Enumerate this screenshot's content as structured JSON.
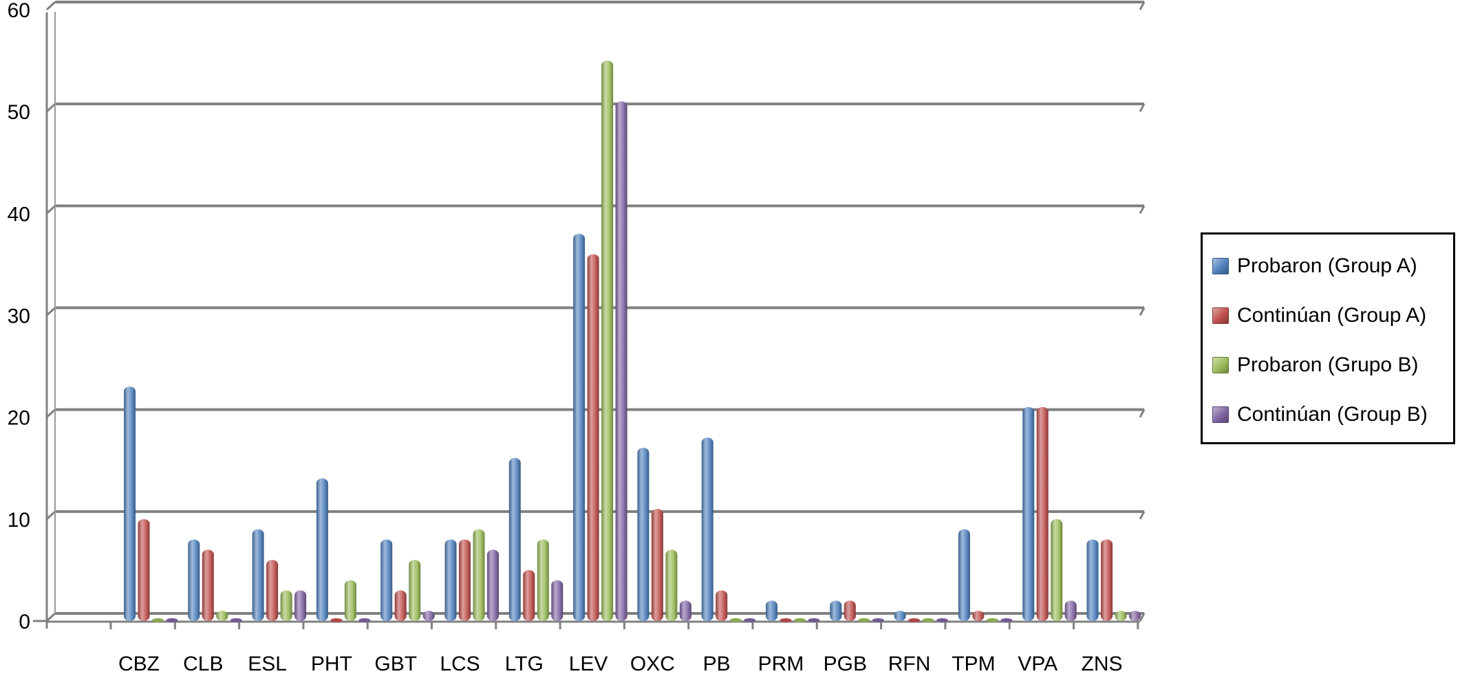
{
  "chart_data": {
    "type": "bar",
    "categories": [
      "CBZ",
      "CLB",
      "ESL",
      "PHT",
      "GBT",
      "LCS",
      "LTG",
      "LEV",
      "OXC",
      "PB",
      "PRM",
      "PGB",
      "RFN",
      "TPM",
      "VPA",
      "ZNS"
    ],
    "series": [
      {
        "name": "Probaron (Group A)",
        "color": "#4f81bd",
        "values": [
          23,
          8,
          9,
          14,
          8,
          8,
          16,
          38,
          17,
          18,
          2,
          2,
          1,
          9,
          21,
          8
        ]
      },
      {
        "name": "Continúan (Group A)",
        "color": "#c0504d",
        "values": [
          10,
          7,
          6,
          0,
          3,
          8,
          5,
          36,
          11,
          3,
          0,
          2,
          0,
          1,
          21,
          8
        ]
      },
      {
        "name": "Probaron (Grupo B)",
        "color": "#9bbb59",
        "values": [
          0,
          1,
          3,
          4,
          6,
          9,
          8,
          55,
          7,
          0,
          0,
          0,
          0,
          0,
          10,
          1
        ]
      },
      {
        "name": "Continúan (Group B)",
        "color": "#8064a2",
        "values": [
          0,
          0,
          3,
          0,
          1,
          7,
          4,
          51,
          2,
          0,
          0,
          0,
          0,
          0,
          2,
          1
        ]
      }
    ],
    "yticks": [
      "0",
      "10",
      "20",
      "30",
      "40",
      "50",
      "60"
    ],
    "ylim": [
      0,
      60
    ],
    "grid": true,
    "legend_position": "right"
  }
}
